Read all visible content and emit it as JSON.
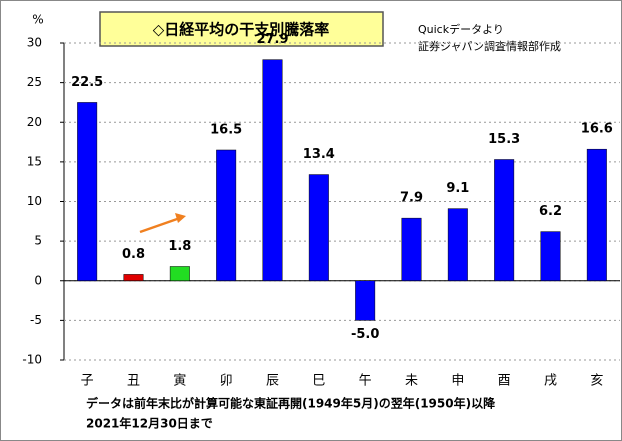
{
  "chart_data": {
    "type": "bar",
    "title": "◇日経平均の干支別騰落率",
    "y_unit": "%",
    "source": [
      "Quickデータより",
      "証券ジャパン調査情報部作成"
    ],
    "footnote": [
      "データは前年末比が計算可能な東証再開(1949年5月)の翌年(1950年)以降",
      "2021年12月30日まで"
    ],
    "categories": [
      "子",
      "丑",
      "寅",
      "卯",
      "辰",
      "巳",
      "午",
      "未",
      "申",
      "酉",
      "戌",
      "亥"
    ],
    "values": [
      22.5,
      0.8,
      1.8,
      16.5,
      27.9,
      13.4,
      -5.0,
      7.9,
      9.1,
      15.3,
      6.2,
      16.6
    ],
    "value_labels": [
      "22.5",
      "0.8",
      "1.8",
      "16.5",
      "27.9",
      "13.4",
      "-5.0",
      "7.9",
      "9.1",
      "15.3",
      "6.2",
      "16.6"
    ],
    "colors": [
      "#0000ff",
      "#e00000",
      "#22dd22",
      "#0000ff",
      "#0000ff",
      "#0000ff",
      "#0000ff",
      "#0000ff",
      "#0000ff",
      "#0000ff",
      "#0000ff",
      "#0000ff"
    ],
    "ylim": [
      -10,
      30
    ],
    "yticks": [
      -10,
      -5,
      0,
      5,
      10,
      15,
      20,
      25,
      30
    ],
    "grid": true
  }
}
